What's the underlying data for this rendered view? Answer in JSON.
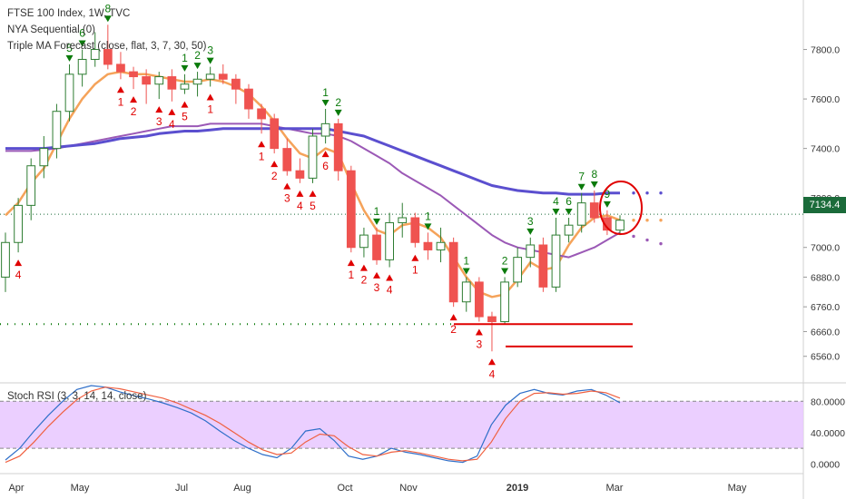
{
  "legend": {
    "symbol": "FTSE 100 Index, 1W, TVC",
    "indicator_1": "NYA Sequential (0)",
    "indicator_2": "Triple MA Forecast (close, flat, 3, 7, 30, 50)",
    "oscillator": "Stoch RSI (3, 3, 14, 14, close)"
  },
  "last_price_label": "7134.4",
  "colors": {
    "up_candle": "#ffffff",
    "up_border": "#2e7d32",
    "down_candle": "#ef5350",
    "ma_fast": "#f5a35a",
    "ma_slow": "#9b59b6",
    "ma_long": "#5b4fcf",
    "bear_marker": "#e00000",
    "bull_marker": "#0a7a0a",
    "stoch_band": "#e7c7ff",
    "stoch_k": "#2f6fc9",
    "stoch_d": "#f06040"
  },
  "chart_data": [
    {
      "type": "candlestick",
      "ylim": [
        6460,
        8000
      ],
      "yticks": [
        "6560.0",
        "6660.0",
        "6760.0",
        "6880.0",
        "7000.0",
        "7200.0",
        "7400.0",
        "7600.0",
        "7800.0"
      ],
      "x_ticks": [
        "Apr",
        "May",
        "Jul",
        "Aug",
        "Oct",
        "Nov",
        "2019",
        "Mar",
        "May"
      ],
      "candles": [
        {
          "o": 6880,
          "h": 7060,
          "l": 6820,
          "c": 7020
        },
        {
          "o": 7020,
          "h": 7200,
          "l": 6980,
          "c": 7170
        },
        {
          "o": 7170,
          "h": 7360,
          "l": 7110,
          "c": 7330
        },
        {
          "o": 7330,
          "h": 7450,
          "l": 7280,
          "c": 7400
        },
        {
          "o": 7400,
          "h": 7580,
          "l": 7360,
          "c": 7550
        },
        {
          "o": 7550,
          "h": 7740,
          "l": 7510,
          "c": 7700
        },
        {
          "o": 7700,
          "h": 7800,
          "l": 7650,
          "c": 7760
        },
        {
          "o": 7760,
          "h": 7870,
          "l": 7730,
          "c": 7800
        },
        {
          "o": 7800,
          "h": 7900,
          "l": 7720,
          "c": 7740
        },
        {
          "o": 7740,
          "h": 7790,
          "l": 7680,
          "c": 7710
        },
        {
          "o": 7710,
          "h": 7730,
          "l": 7640,
          "c": 7690
        },
        {
          "o": 7690,
          "h": 7720,
          "l": 7580,
          "c": 7660
        },
        {
          "o": 7660,
          "h": 7710,
          "l": 7600,
          "c": 7690
        },
        {
          "o": 7690,
          "h": 7720,
          "l": 7590,
          "c": 7640
        },
        {
          "o": 7640,
          "h": 7700,
          "l": 7620,
          "c": 7660
        },
        {
          "o": 7660,
          "h": 7710,
          "l": 7610,
          "c": 7680
        },
        {
          "o": 7680,
          "h": 7730,
          "l": 7650,
          "c": 7700
        },
        {
          "o": 7700,
          "h": 7740,
          "l": 7660,
          "c": 7680
        },
        {
          "o": 7680,
          "h": 7700,
          "l": 7580,
          "c": 7640
        },
        {
          "o": 7640,
          "h": 7660,
          "l": 7520,
          "c": 7560
        },
        {
          "o": 7560,
          "h": 7580,
          "l": 7460,
          "c": 7520
        },
        {
          "o": 7520,
          "h": 7540,
          "l": 7380,
          "c": 7400
        },
        {
          "o": 7400,
          "h": 7440,
          "l": 7290,
          "c": 7310
        },
        {
          "o": 7310,
          "h": 7360,
          "l": 7260,
          "c": 7280
        },
        {
          "o": 7280,
          "h": 7480,
          "l": 7260,
          "c": 7450
        },
        {
          "o": 7450,
          "h": 7560,
          "l": 7420,
          "c": 7500
        },
        {
          "o": 7500,
          "h": 7520,
          "l": 7270,
          "c": 7310
        },
        {
          "o": 7310,
          "h": 7330,
          "l": 6980,
          "c": 7000
        },
        {
          "o": 7000,
          "h": 7080,
          "l": 6960,
          "c": 7050
        },
        {
          "o": 7050,
          "h": 7080,
          "l": 6930,
          "c": 6950
        },
        {
          "o": 6950,
          "h": 7140,
          "l": 6920,
          "c": 7100
        },
        {
          "o": 7100,
          "h": 7180,
          "l": 7040,
          "c": 7120
        },
        {
          "o": 7120,
          "h": 7140,
          "l": 7000,
          "c": 7020
        },
        {
          "o": 7020,
          "h": 7060,
          "l": 6950,
          "c": 6990
        },
        {
          "o": 6990,
          "h": 7080,
          "l": 6940,
          "c": 7020
        },
        {
          "o": 7020,
          "h": 7040,
          "l": 6760,
          "c": 6780
        },
        {
          "o": 6780,
          "h": 6880,
          "l": 6740,
          "c": 6860
        },
        {
          "o": 6860,
          "h": 6880,
          "l": 6700,
          "c": 6720
        },
        {
          "o": 6720,
          "h": 6740,
          "l": 6580,
          "c": 6700
        },
        {
          "o": 6700,
          "h": 6880,
          "l": 6690,
          "c": 6860
        },
        {
          "o": 6860,
          "h": 7000,
          "l": 6840,
          "c": 6960
        },
        {
          "o": 6960,
          "h": 7040,
          "l": 6920,
          "c": 7010
        },
        {
          "o": 7010,
          "h": 7040,
          "l": 6820,
          "c": 6840
        },
        {
          "o": 6840,
          "h": 7120,
          "l": 6820,
          "c": 7050
        },
        {
          "o": 7050,
          "h": 7120,
          "l": 7020,
          "c": 7090
        },
        {
          "o": 7090,
          "h": 7220,
          "l": 7060,
          "c": 7180
        },
        {
          "o": 7180,
          "h": 7230,
          "l": 7100,
          "c": 7120
        },
        {
          "o": 7120,
          "h": 7150,
          "l": 7050,
          "c": 7070
        },
        {
          "o": 7070,
          "h": 7130,
          "l": 7050,
          "c": 7110
        }
      ],
      "series": [
        {
          "values": [
            7130,
            7180,
            7260,
            7320,
            7420,
            7520,
            7600,
            7660,
            7700,
            7710,
            7700,
            7700,
            7690,
            7680,
            7670,
            7670,
            7680,
            7670,
            7650,
            7620,
            7570,
            7510,
            7440,
            7380,
            7360,
            7400,
            7380,
            7260,
            7150,
            7070,
            7050,
            7090,
            7100,
            7080,
            7040,
            6960,
            6880,
            6820,
            6800,
            6810,
            6870,
            6940,
            6910,
            6920,
            7010,
            7080,
            7120,
            7130,
            7110
          ]
        },
        {
          "values": [
            7390,
            7390,
            7390,
            7395,
            7400,
            7410,
            7420,
            7430,
            7440,
            7450,
            7460,
            7470,
            7480,
            7490,
            7490,
            7490,
            7500,
            7500,
            7500,
            7500,
            7500,
            7490,
            7480,
            7470,
            7460,
            7460,
            7450,
            7430,
            7400,
            7370,
            7340,
            7300,
            7270,
            7240,
            7210,
            7170,
            7130,
            7090,
            7050,
            7020,
            7000,
            6990,
            6980,
            6970,
            6960,
            6980,
            7000,
            7030,
            7060
          ]
        },
        {
          "values": [
            7400,
            7400,
            7400,
            7400,
            7405,
            7410,
            7415,
            7420,
            7430,
            7440,
            7445,
            7450,
            7460,
            7465,
            7470,
            7470,
            7475,
            7480,
            7480,
            7480,
            7480,
            7480,
            7480,
            7480,
            7480,
            7480,
            7470,
            7460,
            7450,
            7430,
            7410,
            7390,
            7370,
            7350,
            7330,
            7310,
            7290,
            7270,
            7250,
            7240,
            7230,
            7225,
            7220,
            7220,
            7215,
            7215,
            7215,
            7220,
            7220
          ]
        }
      ],
      "markers_above": [
        "5",
        "6",
        "8",
        "1",
        "2",
        "3",
        "1",
        "2",
        "6",
        "7",
        "8",
        "9",
        "1",
        "2",
        "3",
        "4",
        "1",
        "1"
      ],
      "markers_below": [
        "4",
        "1",
        "2",
        "3",
        "4",
        "5",
        "1",
        "1",
        "2",
        "3",
        "4",
        "5",
        "6",
        "1",
        "2",
        "3",
        "4",
        "1",
        "2",
        "3",
        "4"
      ],
      "last_price": 7134.4
    },
    {
      "type": "line",
      "ylim": [
        -10,
        100
      ],
      "yticks": [
        "0.0000",
        "40.0000",
        "80.0000"
      ],
      "series": [
        {
          "values": [
            5,
            20,
            42,
            62,
            80,
            95,
            100,
            98,
            92,
            87,
            83,
            78,
            72,
            65,
            55,
            42,
            30,
            20,
            12,
            8,
            20,
            42,
            45,
            30,
            10,
            6,
            10,
            20,
            15,
            12,
            8,
            4,
            2,
            10,
            50,
            75,
            90,
            95,
            90,
            88,
            93,
            95,
            88,
            78
          ]
        },
        {
          "values": [
            2,
            10,
            28,
            48,
            66,
            82,
            93,
            98,
            96,
            92,
            88,
            84,
            78,
            70,
            62,
            52,
            40,
            28,
            18,
            12,
            14,
            28,
            38,
            36,
            22,
            12,
            10,
            15,
            17,
            14,
            10,
            6,
            4,
            6,
            28,
            58,
            80,
            90,
            91,
            89,
            90,
            93,
            91,
            84
          ]
        }
      ]
    }
  ]
}
